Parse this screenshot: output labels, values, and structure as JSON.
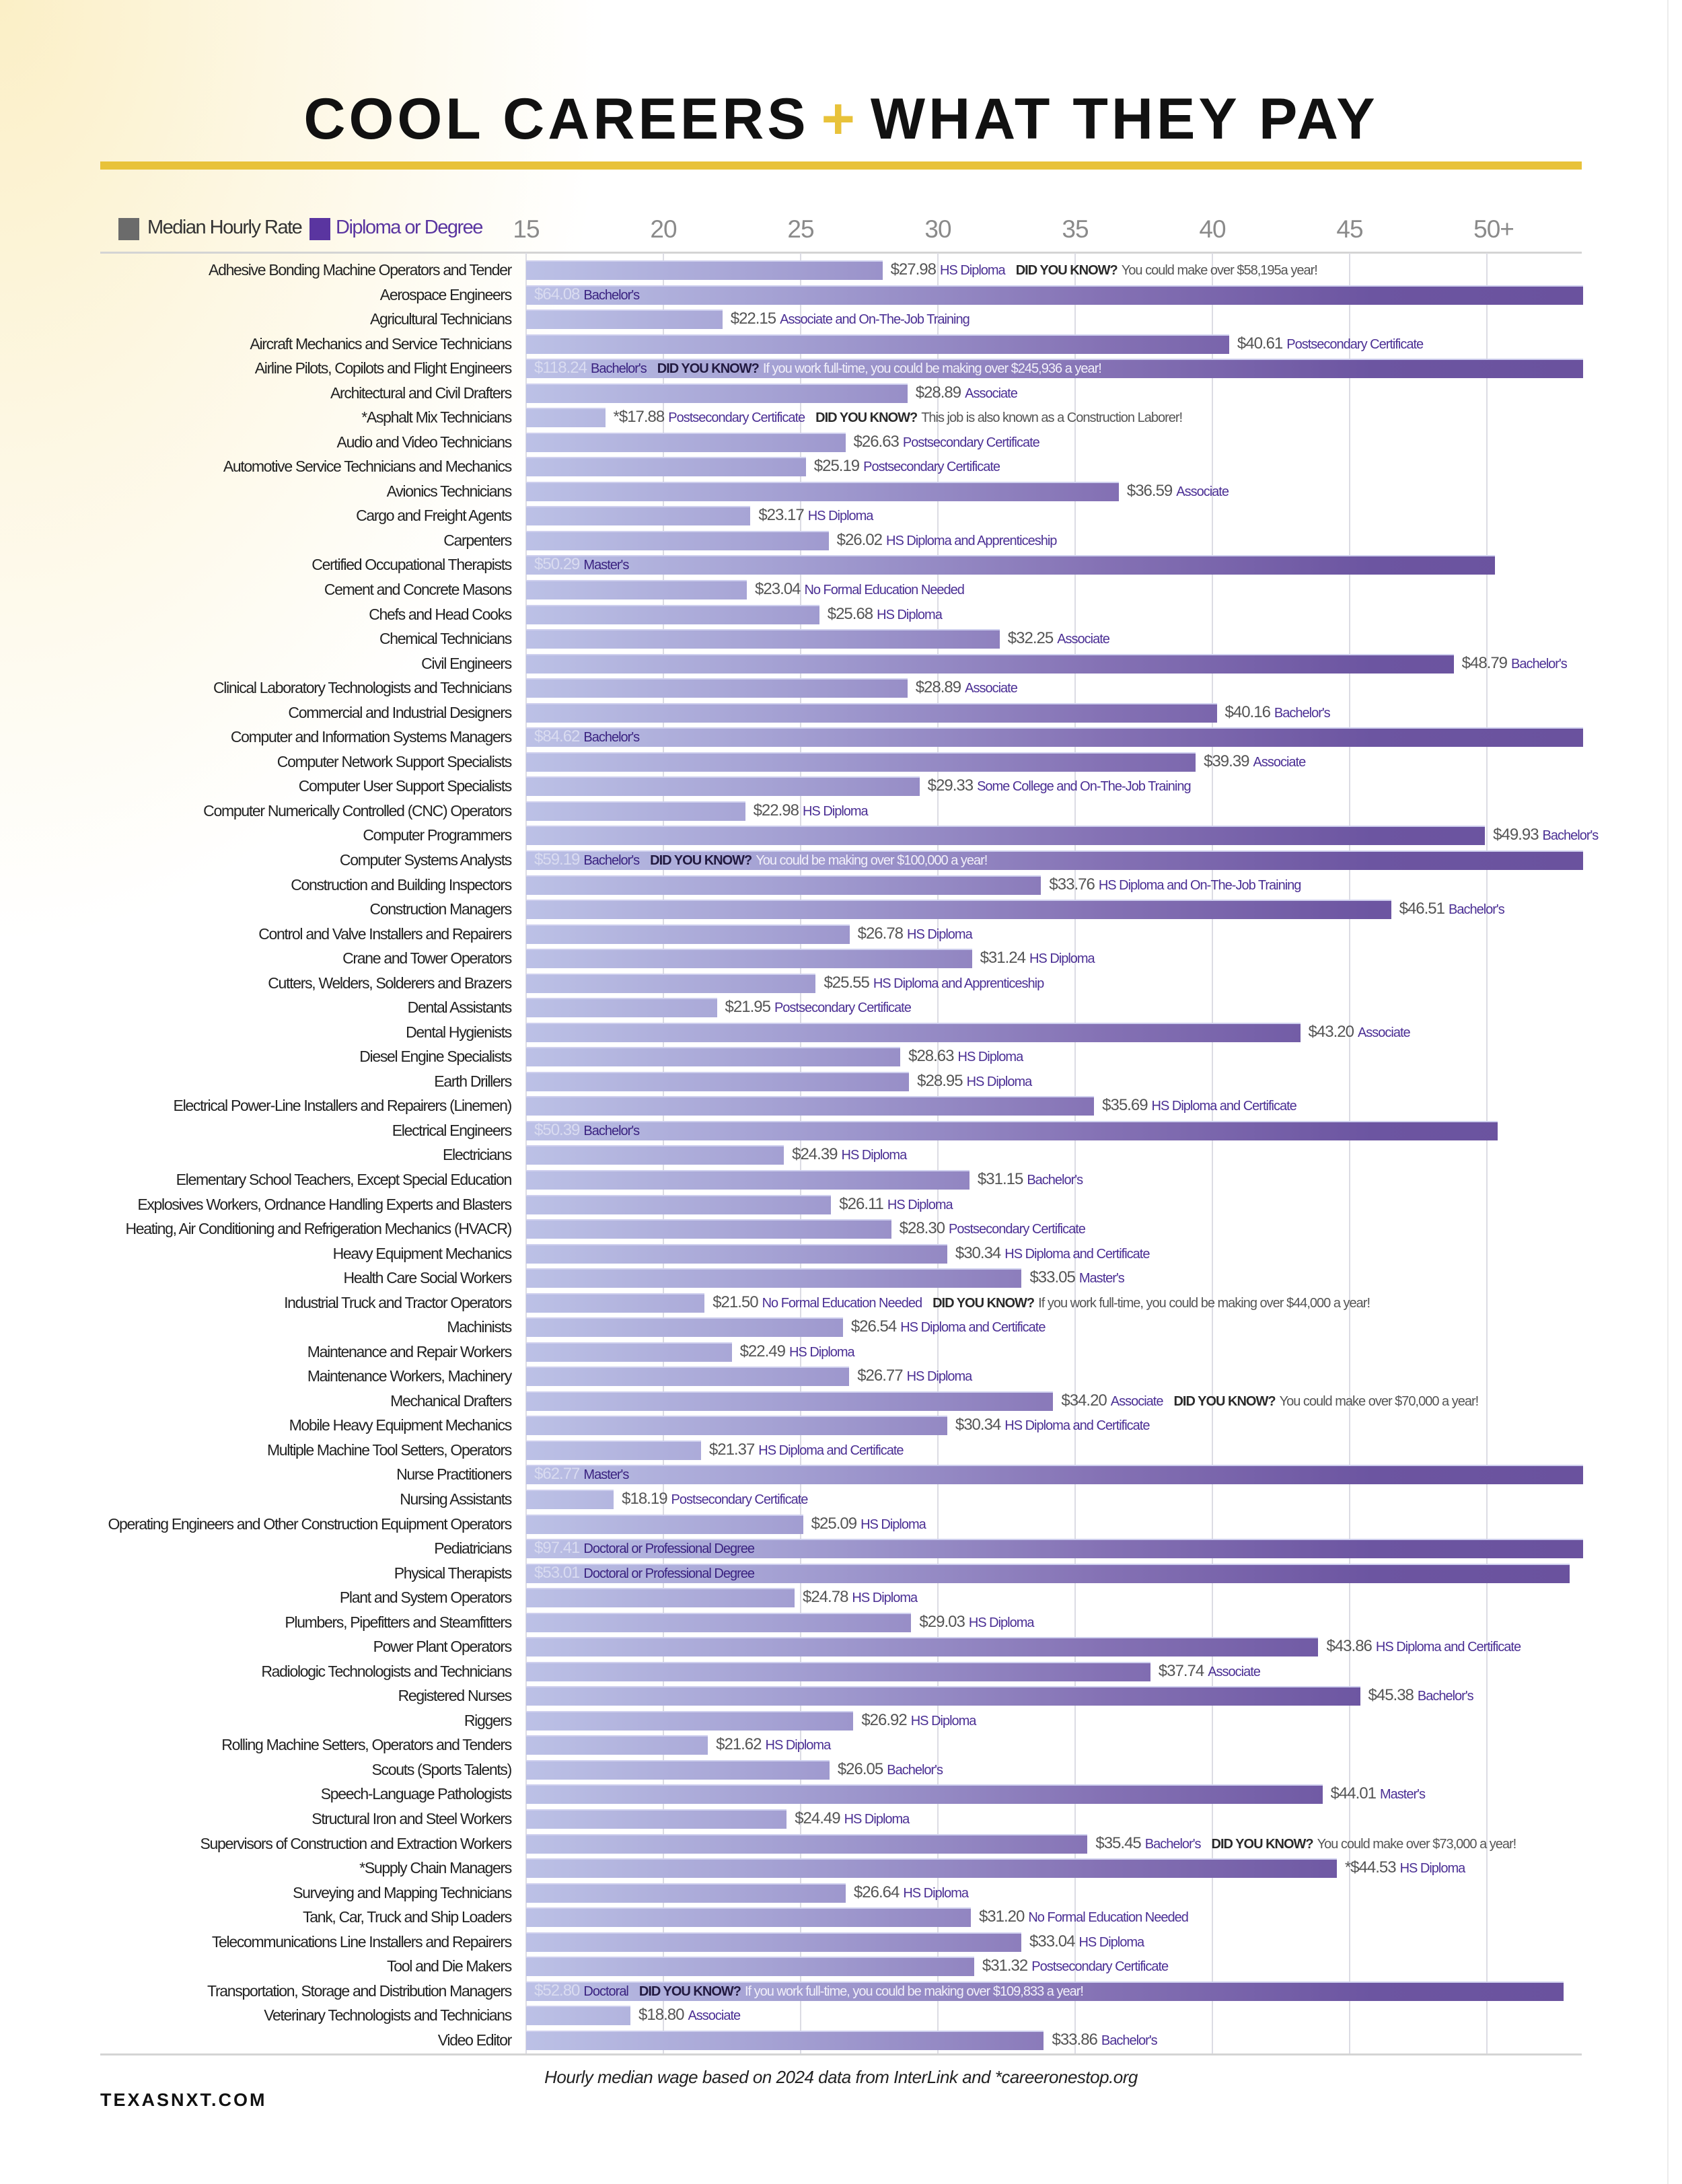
{
  "header": {
    "title_left": "COOL CAREERS",
    "title_plus": "+",
    "title_right": "WHAT THEY PAY"
  },
  "colors": {
    "gold": "#e8c23a",
    "median_legend": "#6b6b6b",
    "degree_legend": "#5a35a0",
    "bar_start": "#bcc1e6",
    "bar_end": "#6a529e"
  },
  "footer": {
    "caption": "Hourly median wage based on 2024 data from InterLink and *careeronestop.org",
    "site": "TEXASNXT.COM"
  },
  "chart_data": {
    "type": "bar",
    "orientation": "horizontal",
    "title": "COOL CAREERS + WHAT THEY PAY",
    "xlim": [
      15,
      53.5
    ],
    "x_ticks": [
      "15",
      "20",
      "25",
      "30",
      "35",
      "40",
      "45",
      "50+"
    ],
    "grid": true,
    "legend": {
      "position": "top-left",
      "entries": [
        {
          "label": "Median Hourly Rate",
          "color": "#6b6b6b"
        },
        {
          "label": "Diploma or Degree",
          "color": "#5a35a0"
        }
      ]
    },
    "fact_lead": "DID YOU KNOW?",
    "rows": [
      {
        "name": "Adhesive Bonding Machine Operators and Tender",
        "value": 27.98,
        "wage": "$27.98",
        "degree": "HS Diploma",
        "fact": "You could make over $58,195a year!"
      },
      {
        "name": "Aerospace Engineers",
        "value": 64.08,
        "wage": "$64.08",
        "degree": "Bachelor's"
      },
      {
        "name": "Agricultural Technicians",
        "value": 22.15,
        "wage": "$22.15",
        "degree": "Associate and On-The-Job Training"
      },
      {
        "name": "Aircraft Mechanics and Service Technicians",
        "value": 40.61,
        "wage": "$40.61",
        "degree": "Postsecondary Certificate"
      },
      {
        "name": "Airline Pilots, Copilots and Flight Engineers",
        "value": 118.24,
        "wage": "$118.24",
        "degree": "Bachelor's",
        "fact": "If you work full-time, you could be making over $245,936 a year!"
      },
      {
        "name": "Architectural and Civil Drafters",
        "value": 28.89,
        "wage": "$28.89",
        "degree": "Associate"
      },
      {
        "name": "*Asphalt Mix Technicians",
        "value": 17.88,
        "wage": "*$17.88",
        "degree": "Postsecondary Certificate",
        "fact": "This job is also known as a Construction Laborer!"
      },
      {
        "name": "Audio and Video Technicians",
        "value": 26.63,
        "wage": "$26.63",
        "degree": "Postsecondary Certificate"
      },
      {
        "name": "Automotive Service Technicians and Mechanics",
        "value": 25.19,
        "wage": "$25.19",
        "degree": "Postsecondary Certificate"
      },
      {
        "name": "Avionics Technicians",
        "value": 36.59,
        "wage": "$36.59",
        "degree": "Associate"
      },
      {
        "name": "Cargo and Freight Agents",
        "value": 23.17,
        "wage": "$23.17",
        "degree": "HS Diploma"
      },
      {
        "name": "Carpenters",
        "value": 26.02,
        "wage": "$26.02",
        "degree": "HS Diploma and Apprenticeship"
      },
      {
        "name": "Certified Occupational Therapists",
        "value": 50.29,
        "wage": "$50.29",
        "degree": "Master's"
      },
      {
        "name": "Cement and Concrete Masons",
        "value": 23.04,
        "wage": "$23.04",
        "degree": "No Formal Education Needed"
      },
      {
        "name": "Chefs and Head Cooks",
        "value": 25.68,
        "wage": "$25.68",
        "degree": "HS Diploma"
      },
      {
        "name": "Chemical Technicians",
        "value": 32.25,
        "wage": "$32.25",
        "degree": "Associate"
      },
      {
        "name": "Civil Engineers",
        "value": 48.79,
        "wage": "$48.79",
        "degree": "Bachelor's"
      },
      {
        "name": "Clinical Laboratory Technologists and Technicians",
        "value": 28.89,
        "wage": "$28.89",
        "degree": "Associate"
      },
      {
        "name": "Commercial and Industrial Designers",
        "value": 40.16,
        "wage": "$40.16",
        "degree": "Bachelor's"
      },
      {
        "name": "Computer and Information Systems Managers",
        "value": 84.62,
        "wage": "$84.62",
        "degree": "Bachelor's"
      },
      {
        "name": "Computer Network Support Specialists",
        "value": 39.39,
        "wage": "$39.39",
        "degree": "Associate"
      },
      {
        "name": "Computer User Support Specialists",
        "value": 29.33,
        "wage": "$29.33",
        "degree": "Some College and On-The-Job Training"
      },
      {
        "name": "Computer Numerically Controlled (CNC) Operators",
        "value": 22.98,
        "wage": "$22.98",
        "degree": "HS Diploma"
      },
      {
        "name": "Computer Programmers",
        "value": 49.93,
        "wage": "$49.93",
        "degree": "Bachelor's"
      },
      {
        "name": "Computer Systems Analysts",
        "value": 59.19,
        "wage": "$59.19",
        "degree": "Bachelor's",
        "fact": "You could be making over $100,000 a year!"
      },
      {
        "name": "Construction and Building Inspectors",
        "value": 33.76,
        "wage": "$33.76",
        "degree": "HS Diploma and On-The-Job Training"
      },
      {
        "name": "Construction Managers",
        "value": 46.51,
        "wage": "$46.51",
        "degree": "Bachelor's"
      },
      {
        "name": "Control and Valve Installers and Repairers",
        "value": 26.78,
        "wage": "$26.78",
        "degree": "HS Diploma"
      },
      {
        "name": "Crane and Tower Operators",
        "value": 31.24,
        "wage": "$31.24",
        "degree": "HS Diploma"
      },
      {
        "name": "Cutters, Welders, Solderers and Brazers",
        "value": 25.55,
        "wage": "$25.55",
        "degree": "HS Diploma and Apprenticeship"
      },
      {
        "name": "Dental Assistants",
        "value": 21.95,
        "wage": "$21.95",
        "degree": "Postsecondary Certificate"
      },
      {
        "name": "Dental Hygienists",
        "value": 43.2,
        "wage": "$43.20",
        "degree": "Associate"
      },
      {
        "name": "Diesel Engine Specialists",
        "value": 28.63,
        "wage": "$28.63",
        "degree": "HS Diploma"
      },
      {
        "name": "Earth Drillers",
        "value": 28.95,
        "wage": "$28.95",
        "degree": "HS Diploma"
      },
      {
        "name": "Electrical Power-Line Installers and Repairers (Linemen)",
        "value": 35.69,
        "wage": "$35.69",
        "degree": "HS Diploma and Certificate"
      },
      {
        "name": "Electrical Engineers",
        "value": 50.39,
        "wage": "$50.39",
        "degree": "Bachelor's"
      },
      {
        "name": "Electricians",
        "value": 24.39,
        "wage": "$24.39",
        "degree": "HS Diploma"
      },
      {
        "name": "Elementary School Teachers, Except Special Education",
        "value": 31.15,
        "wage": "$31.15",
        "degree": "Bachelor's"
      },
      {
        "name": "Explosives Workers, Ordnance Handling Experts and Blasters",
        "value": 26.11,
        "wage": "$26.11",
        "degree": "HS Diploma"
      },
      {
        "name": "Heating, Air Conditioning and Refrigeration Mechanics (HVACR)",
        "value": 28.3,
        "wage": "$28.30",
        "degree": "Postsecondary Certificate"
      },
      {
        "name": "Heavy Equipment Mechanics",
        "value": 30.34,
        "wage": "$30.34",
        "degree": "HS Diploma and Certificate"
      },
      {
        "name": "Health Care Social Workers",
        "value": 33.05,
        "wage": "$33.05",
        "degree": "Master's"
      },
      {
        "name": "Industrial Truck and Tractor Operators",
        "value": 21.5,
        "wage": "$21.50",
        "degree": "No Formal Education Needed",
        "fact": "If you work full-time, you could be making over $44,000 a year!"
      },
      {
        "name": "Machinists",
        "value": 26.54,
        "wage": "$26.54",
        "degree": "HS Diploma and Certificate"
      },
      {
        "name": "Maintenance and Repair Workers",
        "value": 22.49,
        "wage": "$22.49",
        "degree": "HS Diploma"
      },
      {
        "name": "Maintenance Workers, Machinery",
        "value": 26.77,
        "wage": "$26.77",
        "degree": "HS Diploma"
      },
      {
        "name": "Mechanical Drafters",
        "value": 34.2,
        "wage": "$34.20",
        "degree": "Associate",
        "fact": "You could make over $70,000 a year!"
      },
      {
        "name": "Mobile Heavy Equipment Mechanics",
        "value": 30.34,
        "wage": "$30.34",
        "degree": "HS Diploma and Certificate"
      },
      {
        "name": "Multiple Machine Tool Setters, Operators",
        "value": 21.37,
        "wage": "$21.37",
        "degree": "HS Diploma and Certificate"
      },
      {
        "name": "Nurse Practitioners",
        "value": 62.77,
        "wage": "$62.77",
        "degree": "Master's"
      },
      {
        "name": "Nursing Assistants",
        "value": 18.19,
        "wage": "$18.19",
        "degree": "Postsecondary Certificate"
      },
      {
        "name": "Operating Engineers and Other Construction Equipment Operators",
        "value": 25.09,
        "wage": "$25.09",
        "degree": "HS Diploma"
      },
      {
        "name": "Pediatricians",
        "value": 97.41,
        "wage": "$97.41",
        "degree": "Doctoral or Professional Degree"
      },
      {
        "name": "Physical Therapists",
        "value": 53.01,
        "wage": "$53.01",
        "degree": "Doctoral  or Professional Degree"
      },
      {
        "name": "Plant and System Operators",
        "value": 24.78,
        "wage": "$24.78",
        "degree": "HS Diploma"
      },
      {
        "name": "Plumbers, Pipefitters and Steamfitters",
        "value": 29.03,
        "wage": "$29.03",
        "degree": "HS Diploma"
      },
      {
        "name": "Power Plant Operators",
        "value": 43.86,
        "wage": "$43.86",
        "degree": "HS Diploma and Certificate"
      },
      {
        "name": "Radiologic Technologists and Technicians",
        "value": 37.74,
        "wage": "$37.74",
        "degree": "Associate"
      },
      {
        "name": "Registered Nurses",
        "value": 45.38,
        "wage": "$45.38",
        "degree": "Bachelor's"
      },
      {
        "name": "Riggers",
        "value": 26.92,
        "wage": "$26.92",
        "degree": "HS Diploma"
      },
      {
        "name": "Rolling Machine Setters, Operators and Tenders",
        "value": 21.62,
        "wage": "$21.62",
        "degree": "HS Diploma"
      },
      {
        "name": "Scouts (Sports Talents)",
        "value": 26.05,
        "wage": "$26.05",
        "degree": "Bachelor's"
      },
      {
        "name": "Speech-Language Pathologists",
        "value": 44.01,
        "wage": "$44.01",
        "degree": "Master's"
      },
      {
        "name": "Structural Iron and Steel Workers",
        "value": 24.49,
        "wage": "$24.49",
        "degree": "HS Diploma"
      },
      {
        "name": "Supervisors of Construction and Extraction Workers",
        "value": 35.45,
        "wage": "$35.45",
        "degree": "Bachelor's",
        "fact": "You could make over $73,000  a year!"
      },
      {
        "name": "*Supply Chain Managers",
        "value": 44.53,
        "wage": "*$44.53",
        "degree": "HS Diploma"
      },
      {
        "name": "Surveying and Mapping Technicians",
        "value": 26.64,
        "wage": "$26.64",
        "degree": "HS Diploma"
      },
      {
        "name": "Tank, Car, Truck and Ship Loaders",
        "value": 31.2,
        "wage": "$31.20",
        "degree": "No Formal Education Needed"
      },
      {
        "name": "Telecommunications Line Installers and Repairers",
        "value": 33.04,
        "wage": "$33.04",
        "degree": "HS Diploma"
      },
      {
        "name": "Tool and Die Makers",
        "value": 31.32,
        "wage": "$31.32",
        "degree": "Postsecondary Certificate"
      },
      {
        "name": "Transportation, Storage and Distribution Managers",
        "value": 52.8,
        "wage": "$52.80",
        "degree": "Doctoral",
        "fact": "If you work full-time, you could be making over $109,833 a year!"
      },
      {
        "name": "Veterinary Technologists and Technicians",
        "value": 18.8,
        "wage": "$18.80",
        "degree": "Associate"
      },
      {
        "name": "Video Editor",
        "value": 33.86,
        "wage": "$33.86",
        "degree": "Bachelor's"
      }
    ]
  }
}
